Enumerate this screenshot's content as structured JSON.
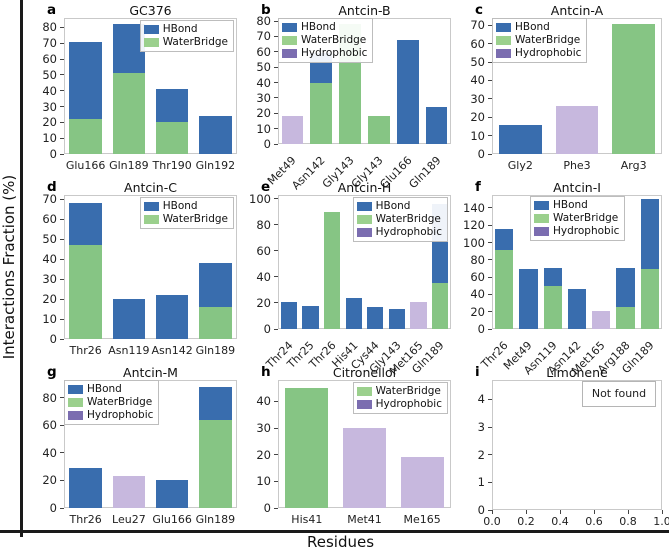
{
  "figure": {
    "ylabel": "Interactions Fraction (%)",
    "xlabel": "Residues"
  },
  "colors": {
    "bar": {
      "HBond": "#396dae",
      "WaterBridge": "#86c584",
      "Hydrophobic": "#c7b8de"
    },
    "legend": {
      "HBond": "#396dae",
      "WaterBridge": "#9bd08d",
      "Hydrophobic": "#7b6db0"
    }
  },
  "chart_data": [
    {
      "panel": "a",
      "title": "GC376",
      "type": "bar",
      "ylim": [
        0,
        86
      ],
      "yticks": [
        0,
        10,
        20,
        30,
        40,
        50,
        60,
        70,
        80
      ],
      "legend": [
        "HBond",
        "WaterBridge"
      ],
      "legend_pos": "right",
      "rotate_xticks": false,
      "bars": [
        {
          "label": "Glu166",
          "segments": [
            {
              "series": "WaterBridge",
              "value": 22
            },
            {
              "series": "HBond",
              "value": 49
            }
          ]
        },
        {
          "label": "Gln189",
          "segments": [
            {
              "series": "WaterBridge",
              "value": 51
            },
            {
              "series": "HBond",
              "value": 31
            }
          ]
        },
        {
          "label": "Thr190",
          "segments": [
            {
              "series": "WaterBridge",
              "value": 20
            },
            {
              "series": "HBond",
              "value": 21
            }
          ]
        },
        {
          "label": "Gln192",
          "segments": [
            {
              "series": "HBond",
              "value": 24
            }
          ]
        }
      ]
    },
    {
      "panel": "b",
      "title": "Antcin-B",
      "type": "bar",
      "ylim": [
        0,
        82
      ],
      "yticks": [
        0,
        10,
        20,
        30,
        40,
        50,
        60,
        70,
        80
      ],
      "legend": [
        "HBond",
        "WaterBridge",
        "Hydrophobic"
      ],
      "legend_pos": "left",
      "rotate_xticks": true,
      "bars": [
        {
          "label": "Met49",
          "segments": [
            {
              "series": "Hydrophobic",
              "value": 18
            }
          ]
        },
        {
          "label": "Asn142",
          "segments": [
            {
              "series": "WaterBridge",
              "value": 40
            },
            {
              "series": "HBond",
              "value": 19
            }
          ]
        },
        {
          "label": "Gly143",
          "segments": [
            {
              "series": "WaterBridge",
              "value": 78
            }
          ]
        },
        {
          "label": "Gly143",
          "segments": [
            {
              "series": "WaterBridge",
              "value": 18
            }
          ]
        },
        {
          "label": "Glu166",
          "segments": [
            {
              "series": "HBond",
              "value": 68
            }
          ]
        },
        {
          "label": "Gln189",
          "segments": [
            {
              "series": "HBond",
              "value": 24
            }
          ]
        }
      ]
    },
    {
      "panel": "c",
      "title": "Antcin-A",
      "type": "bar",
      "ylim": [
        0,
        74
      ],
      "yticks": [
        0,
        10,
        20,
        30,
        40,
        50,
        60,
        70
      ],
      "legend": [
        "HBond",
        "WaterBridge",
        "Hydrophobic"
      ],
      "legend_pos": "left",
      "rotate_xticks": false,
      "bars": [
        {
          "label": "Gly2",
          "segments": [
            {
              "series": "HBond",
              "value": 16
            }
          ]
        },
        {
          "label": "Phe3",
          "segments": [
            {
              "series": "Hydrophobic",
              "value": 26
            }
          ]
        },
        {
          "label": "Arg3",
          "segments": [
            {
              "series": "WaterBridge",
              "value": 71
            }
          ]
        }
      ]
    },
    {
      "panel": "d",
      "title": "Antcin-C",
      "type": "bar",
      "ylim": [
        0,
        72
      ],
      "yticks": [
        0,
        10,
        20,
        30,
        40,
        50,
        60,
        70
      ],
      "legend": [
        "HBond",
        "WaterBridge"
      ],
      "legend_pos": "right",
      "rotate_xticks": false,
      "bars": [
        {
          "label": "Thr26",
          "segments": [
            {
              "series": "WaterBridge",
              "value": 47
            },
            {
              "series": "HBond",
              "value": 21
            }
          ]
        },
        {
          "label": "Asn119",
          "segments": [
            {
              "series": "HBond",
              "value": 20
            }
          ]
        },
        {
          "label": "Asn142",
          "segments": [
            {
              "series": "HBond",
              "value": 22
            }
          ]
        },
        {
          "label": "Gln189",
          "segments": [
            {
              "series": "WaterBridge",
              "value": 16
            },
            {
              "series": "HBond",
              "value": 22
            }
          ]
        }
      ]
    },
    {
      "panel": "e",
      "title": "Antcin-H",
      "type": "bar",
      "ylim": [
        0,
        103
      ],
      "yticks": [
        0,
        20,
        40,
        60,
        80,
        100
      ],
      "legend": [
        "HBond",
        "WaterBridge",
        "Hydrophobic"
      ],
      "legend_pos": "right",
      "rotate_xticks": true,
      "bars": [
        {
          "label": "Thr24",
          "segments": [
            {
              "series": "HBond",
              "value": 21
            }
          ]
        },
        {
          "label": "Thr25",
          "segments": [
            {
              "series": "HBond",
              "value": 18
            }
          ]
        },
        {
          "label": "Thr26",
          "segments": [
            {
              "series": "WaterBridge",
              "value": 90
            }
          ]
        },
        {
          "label": "His41",
          "segments": [
            {
              "series": "HBond",
              "value": 24
            }
          ]
        },
        {
          "label": "Cys44",
          "segments": [
            {
              "series": "HBond",
              "value": 17
            }
          ]
        },
        {
          "label": "Gly143",
          "segments": [
            {
              "series": "HBond",
              "value": 15
            }
          ]
        },
        {
          "label": "Met165",
          "segments": [
            {
              "series": "Hydrophobic",
              "value": 21
            }
          ]
        },
        {
          "label": "Gln189",
          "segments": [
            {
              "series": "WaterBridge",
              "value": 35
            },
            {
              "series": "HBond",
              "value": 61
            }
          ]
        }
      ]
    },
    {
      "panel": "f",
      "title": "Antcin-I",
      "type": "bar",
      "ylim": [
        0,
        155
      ],
      "yticks": [
        0,
        20,
        40,
        60,
        80,
        100,
        120,
        140
      ],
      "legend": [
        "HBond",
        "WaterBridge",
        "Hydrophobic"
      ],
      "legend_pos": "left-center",
      "rotate_xticks": true,
      "bars": [
        {
          "label": "Thr26",
          "segments": [
            {
              "series": "WaterBridge",
              "value": 91
            },
            {
              "series": "HBond",
              "value": 25
            }
          ]
        },
        {
          "label": "Met49",
          "segments": [
            {
              "series": "HBond",
              "value": 69
            }
          ]
        },
        {
          "label": "Asn119",
          "segments": [
            {
              "series": "WaterBridge",
              "value": 50
            },
            {
              "series": "HBond",
              "value": 21
            }
          ]
        },
        {
          "label": "Asn142",
          "segments": [
            {
              "series": "HBond",
              "value": 46
            }
          ]
        },
        {
          "label": "Met165",
          "segments": [
            {
              "series": "Hydrophobic",
              "value": 21
            }
          ]
        },
        {
          "label": "Arg188",
          "segments": [
            {
              "series": "WaterBridge",
              "value": 25
            },
            {
              "series": "HBond",
              "value": 45
            }
          ]
        },
        {
          "label": "Gln189",
          "segments": [
            {
              "series": "WaterBridge",
              "value": 69
            },
            {
              "series": "HBond",
              "value": 81
            }
          ]
        }
      ]
    },
    {
      "panel": "g",
      "title": "Antcin-M",
      "type": "bar",
      "ylim": [
        0,
        93
      ],
      "yticks": [
        0,
        20,
        40,
        60,
        80
      ],
      "legend": [
        "HBond",
        "WaterBridge",
        "Hydrophobic"
      ],
      "legend_pos": "left",
      "rotate_xticks": false,
      "bars": [
        {
          "label": "Thr26",
          "segments": [
            {
              "series": "HBond",
              "value": 29
            }
          ]
        },
        {
          "label": "Leu27",
          "segments": [
            {
              "series": "Hydrophobic",
              "value": 23
            }
          ]
        },
        {
          "label": "Glu166",
          "segments": [
            {
              "series": "HBond",
              "value": 20
            }
          ]
        },
        {
          "label": "Gln189",
          "segments": [
            {
              "series": "WaterBridge",
              "value": 64
            },
            {
              "series": "HBond",
              "value": 24
            }
          ]
        }
      ]
    },
    {
      "panel": "h",
      "title": "Citronellol",
      "type": "bar",
      "ylim": [
        0,
        48
      ],
      "yticks": [
        0,
        10,
        20,
        30,
        40
      ],
      "legend": [
        "WaterBridge",
        "Hydrophobic"
      ],
      "legend_pos": "right",
      "rotate_xticks": false,
      "bars": [
        {
          "label": "His41",
          "segments": [
            {
              "series": "WaterBridge",
              "value": 45
            }
          ]
        },
        {
          "label": "Met41",
          "segments": [
            {
              "series": "Hydrophobic",
              "value": 30
            }
          ]
        },
        {
          "label": "Me165",
          "segments": [
            {
              "series": "Hydrophobic",
              "value": 19
            }
          ]
        }
      ]
    },
    {
      "panel": "i",
      "title": "Limonene",
      "type": "bar",
      "ylim": [
        0,
        4.7
      ],
      "yticks": [
        0,
        1,
        2,
        3,
        4
      ],
      "xticks": [
        "0.0",
        "0.2",
        "0.4",
        "0.6",
        "0.8",
        "1.0"
      ],
      "annotation": "Not  found",
      "bars": []
    }
  ]
}
